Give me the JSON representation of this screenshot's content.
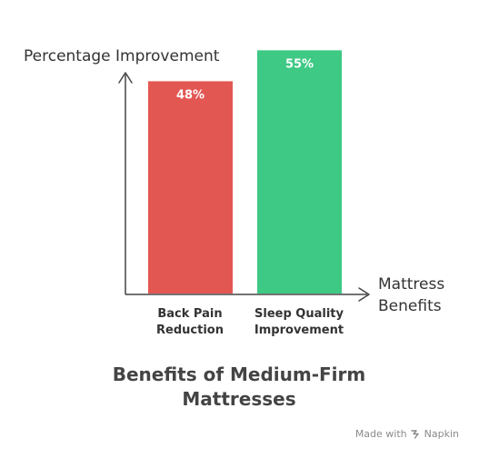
{
  "chart_data": {
    "type": "bar",
    "title_lines": [
      "Benefits of Medium-Firm",
      "Mattresses"
    ],
    "ylabel": "Percentage Improvement",
    "xlabel_lines": [
      "Mattress",
      "Benefits"
    ],
    "categories": [
      [
        "Back Pain",
        "Reduction"
      ],
      [
        "Sleep Quality",
        "Improvement"
      ]
    ],
    "values": [
      48,
      55
    ],
    "value_labels": [
      "48%",
      "55%"
    ],
    "colors": [
      "#e35752",
      "#3ec985"
    ],
    "ylim": [
      0,
      60
    ],
    "grid": false,
    "legend": "none"
  },
  "footer": {
    "made_with": "Made with",
    "brand": "Napkin",
    "icon": "napkin-logo-icon"
  }
}
